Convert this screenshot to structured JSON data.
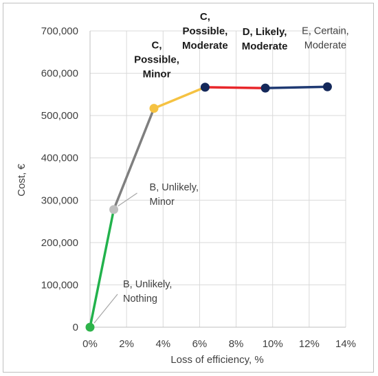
{
  "chart_data": {
    "type": "line",
    "xlabel": "Loss of efficiency, %",
    "ylabel": "Cost, €",
    "xlim": [
      0,
      14
    ],
    "ylim": [
      0,
      700000
    ],
    "x_ticks": [
      0,
      2,
      4,
      6,
      8,
      10,
      12,
      14
    ],
    "x_tick_labels": [
      "0%",
      "2%",
      "4%",
      "6%",
      "8%",
      "10%",
      "12%",
      "14%"
    ],
    "y_ticks": [
      0,
      100000,
      200000,
      300000,
      400000,
      500000,
      600000,
      700000
    ],
    "y_tick_labels": [
      "0",
      "100,000",
      "200,000",
      "300,000",
      "400,000",
      "500,000",
      "600,000",
      "700,000"
    ],
    "grid": true,
    "points": [
      {
        "x": 0.0,
        "y": 0,
        "color": "#2db34a"
      },
      {
        "x": 1.3,
        "y": 278000,
        "color": "#bfbfbf"
      },
      {
        "x": 3.5,
        "y": 517000,
        "color": "#f5c242"
      },
      {
        "x": 6.3,
        "y": 567000,
        "color": "#14285a"
      },
      {
        "x": 9.6,
        "y": 565000,
        "color": "#14285a"
      },
      {
        "x": 13.0,
        "y": 568000,
        "color": "#14285a"
      }
    ],
    "segments": [
      {
        "from": 0,
        "to": 1,
        "color": "#22b24c"
      },
      {
        "from": 1,
        "to": 2,
        "color": "#7f7f7f"
      },
      {
        "from": 2,
        "to": 3,
        "color": "#f5c242"
      },
      {
        "from": 3,
        "to": 4,
        "color": "#e8262a"
      },
      {
        "from": 4,
        "to": 5,
        "color": "#1f3a73"
      }
    ],
    "annotations": [
      {
        "lines": [
          "B, Unlikely,",
          "Nothing"
        ],
        "point": 0,
        "bold": false
      },
      {
        "lines": [
          "B, Unlikely,",
          "Minor"
        ],
        "point": 1,
        "bold": false
      },
      {
        "lines": [
          "C,",
          "Possible,",
          "Minor"
        ],
        "point": 2,
        "bold": true
      },
      {
        "lines": [
          "C,",
          "Possible,",
          "Moderate"
        ],
        "point": 3,
        "bold": true
      },
      {
        "lines": [
          "D, Likely,",
          "Moderate"
        ],
        "point": 4,
        "bold": true
      },
      {
        "lines": [
          "E, Certain,",
          "Moderate"
        ],
        "point": 5,
        "bold": false
      }
    ]
  }
}
